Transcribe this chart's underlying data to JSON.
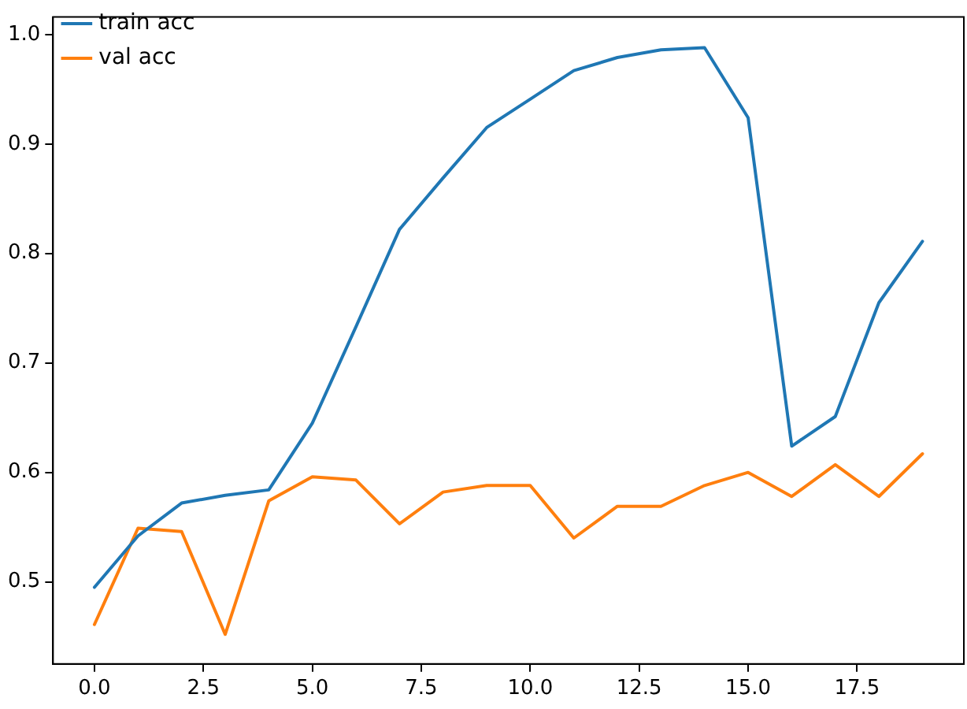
{
  "chart_data": {
    "type": "line",
    "x": [
      0,
      1,
      2,
      3,
      4,
      5,
      6,
      7,
      8,
      9,
      10,
      11,
      12,
      13,
      14,
      15,
      16,
      17,
      18,
      19
    ],
    "series": [
      {
        "name": "train acc",
        "color": "#1f77b4",
        "values": [
          0.495,
          0.542,
          0.572,
          0.579,
          0.584,
          0.645,
          0.733,
          0.822,
          0.869,
          0.915,
          0.941,
          0.967,
          0.979,
          0.986,
          0.988,
          0.924,
          0.624,
          0.651,
          0.755,
          0.811
        ]
      },
      {
        "name": "val acc",
        "color": "#ff7f0e",
        "values": [
          0.461,
          0.549,
          0.546,
          0.452,
          0.574,
          0.596,
          0.593,
          0.553,
          0.582,
          0.588,
          0.588,
          0.54,
          0.569,
          0.569,
          0.588,
          0.6,
          0.578,
          0.607,
          0.578,
          0.617
        ]
      }
    ],
    "xlim": [
      -0.95,
      19.95
    ],
    "xticks": [
      {
        "value": 0,
        "label": "0.0"
      },
      {
        "value": 2.5,
        "label": "2.5"
      },
      {
        "value": 5,
        "label": "5.0"
      },
      {
        "value": 7.5,
        "label": "7.5"
      },
      {
        "value": 10,
        "label": "10.0"
      },
      {
        "value": 12.5,
        "label": "12.5"
      },
      {
        "value": 15,
        "label": "15.0"
      },
      {
        "value": 17.5,
        "label": "17.5"
      }
    ],
    "ylim": [
      0.425,
      1.016
    ],
    "yticks": [
      0.5,
      0.6,
      0.7,
      0.8,
      0.9,
      {
        "value": 1,
        "label": "1.0"
      }
    ],
    "grid": false,
    "legend": "top left",
    "marker": "none",
    "line_style": "solid"
  }
}
